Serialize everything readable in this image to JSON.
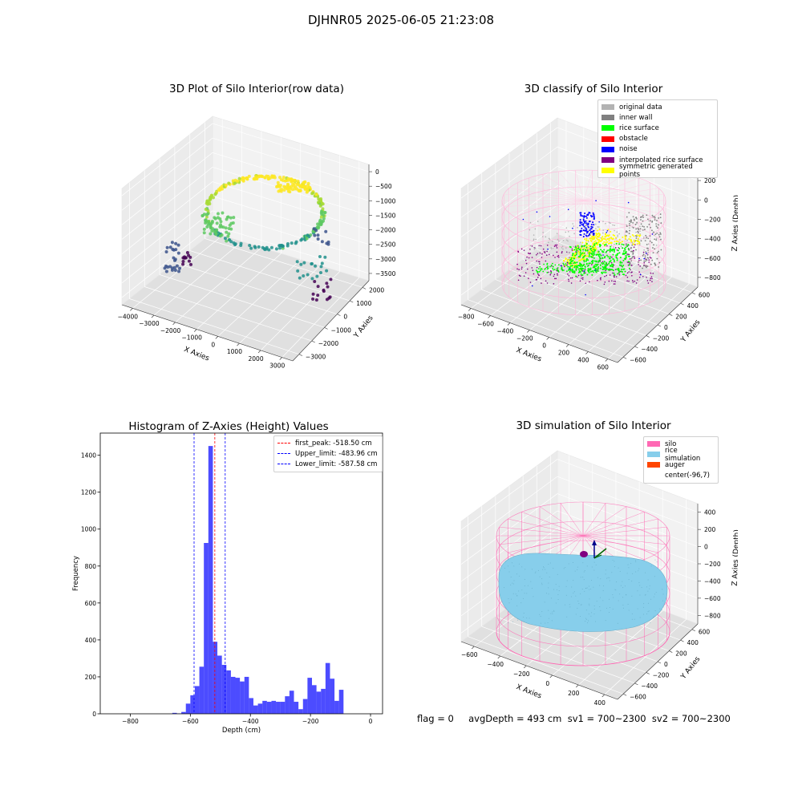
{
  "suptitle": "DJHNR05 2025-06-05 21:23:08",
  "footer": "flag = 0     avgDepth = 493 cm  sv1 = 700~2300  sv2 = 700~2300",
  "chart_data": [
    {
      "type": "scatter",
      "title": "3D Plot of Silo Interior(row data)",
      "xlabel": "X Axies",
      "ylabel": "Y Axies",
      "zlabel": "Z Axies (Depth)",
      "x_ticks": [
        "−4000",
        "−3000",
        "−2000",
        "−1000",
        "0",
        "1000",
        "2000",
        "3000"
      ],
      "y_ticks": [
        "−3000",
        "−2000",
        "−1000",
        "0",
        "1000",
        "2000"
      ],
      "z_ticks": [
        "0",
        "−500",
        "−1000",
        "−1500",
        "−2000",
        "−2500",
        "−3000",
        "−3500"
      ],
      "colormap": "viridis (color by depth)"
    },
    {
      "type": "scatter",
      "title": "3D classify of Silo Interior",
      "xlabel": "X Axies",
      "ylabel": "Y Axies",
      "zlabel": "Z Axies (Depth)",
      "x_ticks": [
        "−800",
        "−600",
        "−400",
        "−200",
        "0",
        "200",
        "400",
        "600"
      ],
      "y_ticks": [
        "−600",
        "−400",
        "−200",
        "0",
        "200",
        "400",
        "600"
      ],
      "z_ticks": [
        "200",
        "0",
        "−200",
        "−400",
        "−600",
        "−800"
      ],
      "z_top_partial": "00",
      "legend": [
        {
          "label": "original data",
          "color": "#b3b3b3"
        },
        {
          "label": "inner wall",
          "color": "#808080"
        },
        {
          "label": "rice surface",
          "color": "#00ff00"
        },
        {
          "label": "obstacle",
          "color": "#ff0000"
        },
        {
          "label": "noise",
          "color": "#0000ff"
        },
        {
          "label": "interpolated rice surface",
          "color": "#800080"
        },
        {
          "label": "symmetric generated points",
          "color": "#ffff00"
        }
      ]
    },
    {
      "type": "bar",
      "title": "Histogram of Z-Axies (Height) Values",
      "xlabel": "Depth (cm)",
      "ylabel": "Frequency",
      "xlim": [
        -900,
        40
      ],
      "ylim": [
        0,
        1520
      ],
      "x_ticks": [
        -800,
        -600,
        -400,
        -200,
        0
      ],
      "x_tick_labels": [
        "−800",
        "−600",
        "−400",
        "−200",
        "0"
      ],
      "y_ticks": [
        0,
        200,
        400,
        600,
        800,
        1000,
        1200,
        1400
      ],
      "bar_color": "#0000ff",
      "bin_width": 15,
      "bins": [
        [
          -660,
          5
        ],
        [
          -645,
          2
        ],
        [
          -630,
          10
        ],
        [
          -615,
          55
        ],
        [
          -600,
          100
        ],
        [
          -585,
          150
        ],
        [
          -570,
          255
        ],
        [
          -555,
          925
        ],
        [
          -540,
          1450
        ],
        [
          -525,
          390
        ],
        [
          -510,
          315
        ],
        [
          -495,
          265
        ],
        [
          -480,
          235
        ],
        [
          -465,
          200
        ],
        [
          -450,
          195
        ],
        [
          -435,
          175
        ],
        [
          -420,
          200
        ],
        [
          -405,
          85
        ],
        [
          -390,
          45
        ],
        [
          -375,
          55
        ],
        [
          -360,
          70
        ],
        [
          -345,
          65
        ],
        [
          -330,
          70
        ],
        [
          -315,
          65
        ],
        [
          -300,
          65
        ],
        [
          -285,
          95
        ],
        [
          -270,
          125
        ],
        [
          -255,
          65
        ],
        [
          -240,
          25
        ],
        [
          -225,
          80
        ],
        [
          -210,
          195
        ],
        [
          -195,
          155
        ],
        [
          -180,
          120
        ],
        [
          -165,
          135
        ],
        [
          -150,
          275
        ],
        [
          -135,
          190
        ],
        [
          -120,
          70
        ],
        [
          -105,
          130
        ]
      ],
      "vlines": [
        {
          "label": "first_peak: -518.50 cm",
          "x": -518.5,
          "color": "#ff0000"
        },
        {
          "label": "Upper_limit: -483.96 cm",
          "x": -483.96,
          "color": "#0000ff"
        },
        {
          "label": "Lower_limit: -587.58 cm",
          "x": -587.58,
          "color": "#0000ff"
        }
      ]
    },
    {
      "type": "scatter",
      "title": "3D simulation of Silo Interior",
      "xlabel": "X Axies",
      "ylabel": "Y Axies",
      "zlabel": "Z Axies (Depth)",
      "x_ticks": [
        "−600",
        "−400",
        "−200",
        "0",
        "200",
        "400"
      ],
      "y_ticks": [
        "−600",
        "−400",
        "−200",
        "0",
        "200",
        "400",
        "600"
      ],
      "z_ticks": [
        "400",
        "200",
        "0",
        "−200",
        "−400",
        "−600",
        "−800"
      ],
      "legend": [
        {
          "label": "silo",
          "color": "#ff69b4"
        },
        {
          "label": "rice simulation",
          "color": "#87ceeb"
        },
        {
          "label": "auger",
          "color": "#ff4500"
        },
        {
          "label": "center(-96,7)",
          "color": ""
        }
      ]
    }
  ]
}
